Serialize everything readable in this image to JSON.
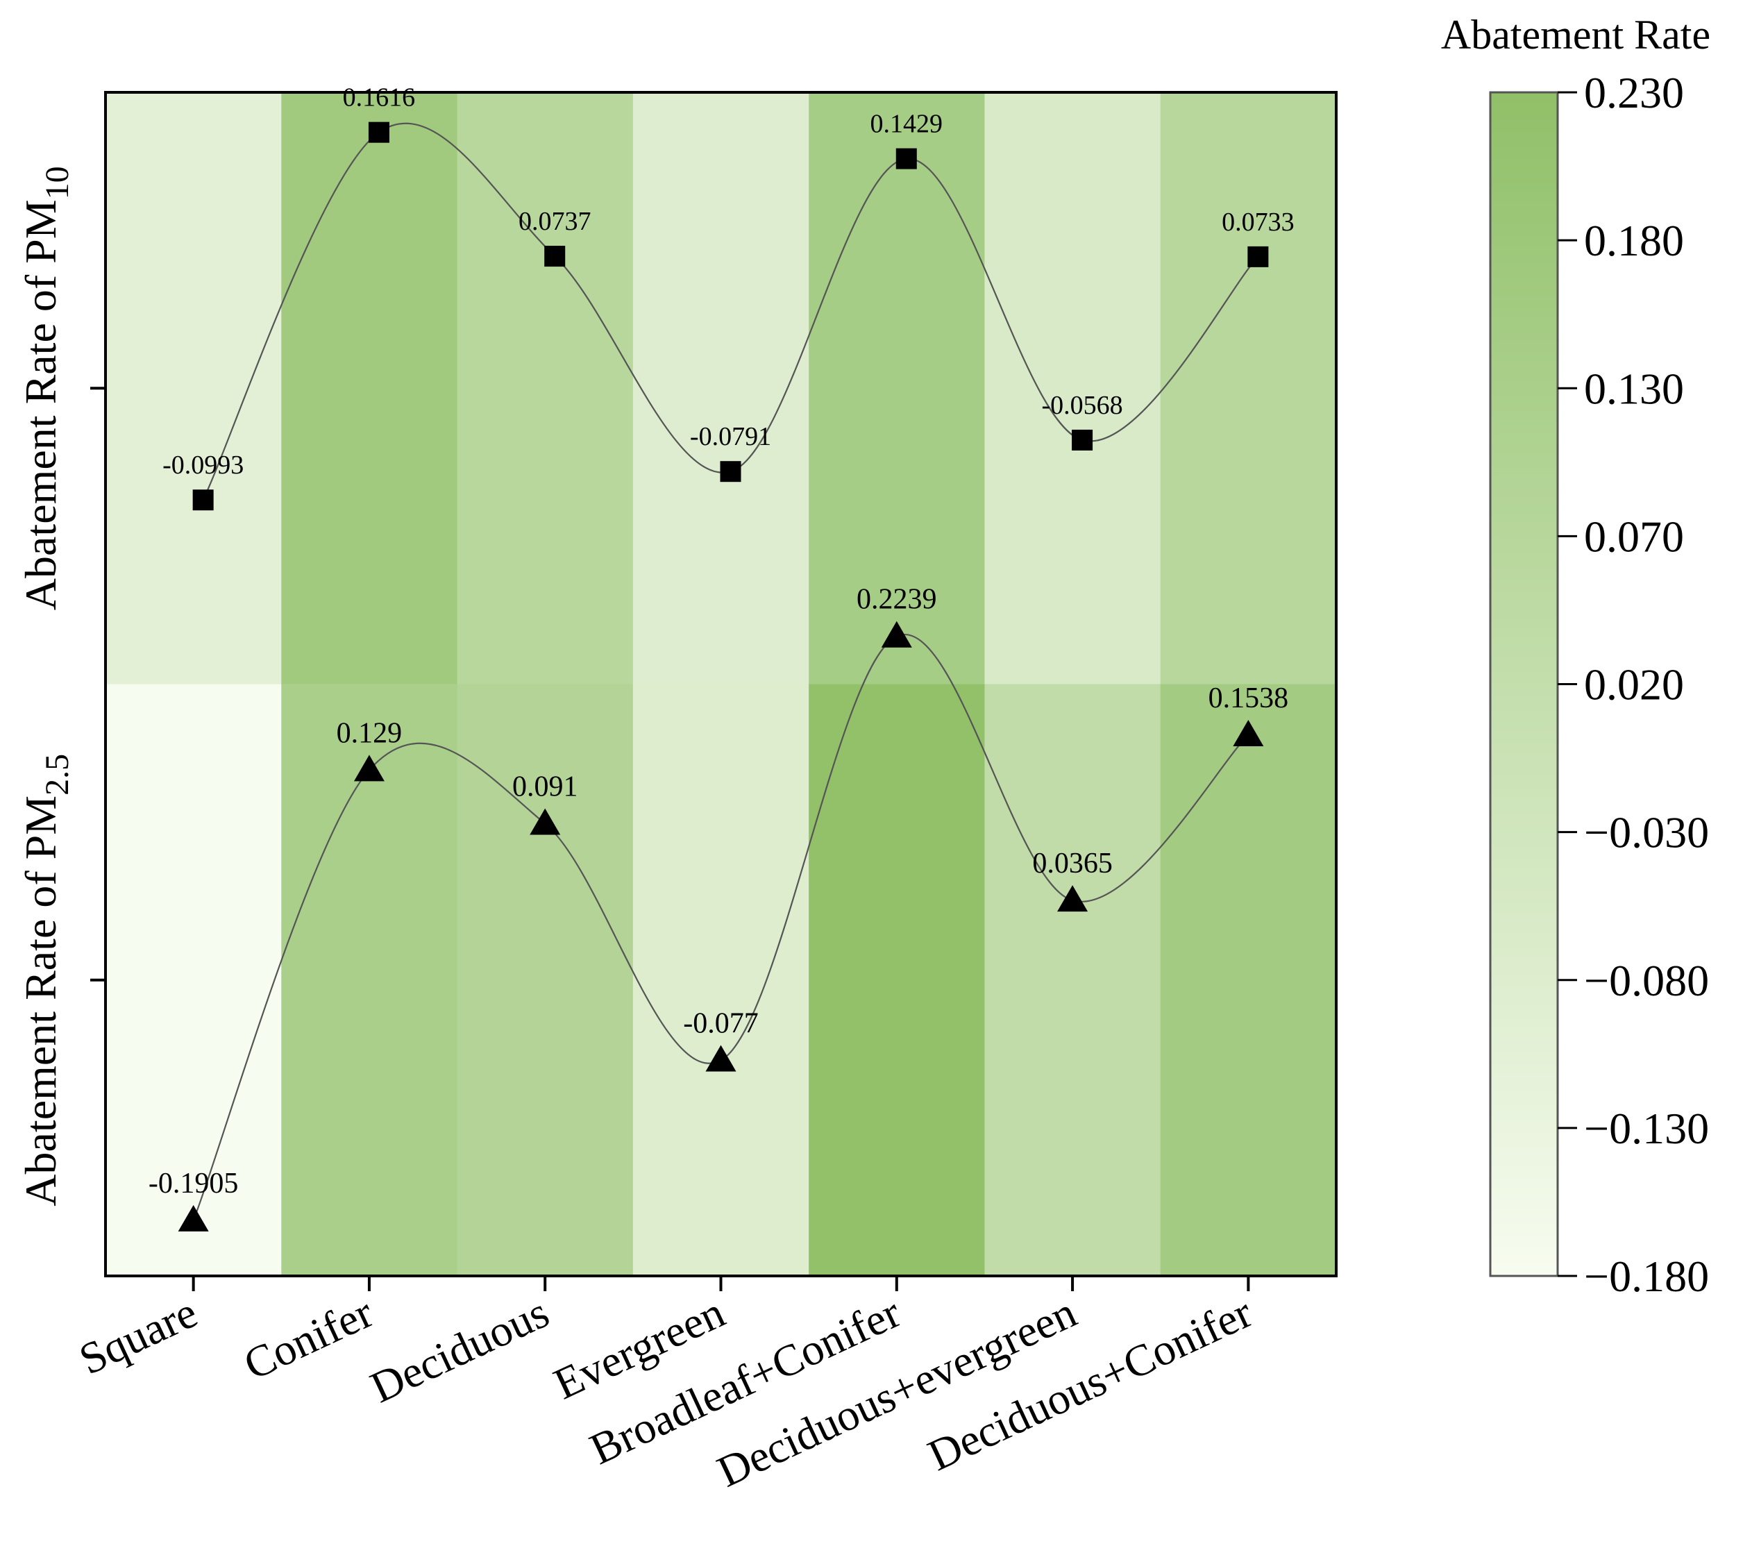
{
  "chart_data": {
    "type": "heatmap",
    "categories": [
      "Square",
      "Conifer",
      "Deciduous",
      "Evergreen",
      "Broadleaf+Conifer",
      "Deciduous+evergreen",
      "Deciduous+Conifer"
    ],
    "rows": [
      {
        "name": "PM10",
        "ylabel_main": "Abatement Rate of PM",
        "ylabel_sub": "10",
        "marker": "square",
        "values": [
          -0.0993,
          0.1616,
          0.0737,
          -0.0791,
          0.1429,
          -0.0568,
          0.0733
        ],
        "labels": [
          "-0.0993",
          "0.1616",
          "0.0737",
          "-0.0791",
          "0.1429",
          "-0.0568",
          "0.0733"
        ]
      },
      {
        "name": "PM2.5",
        "ylabel_main": "Abatement Rate of PM",
        "ylabel_sub": "2.5",
        "marker": "triangle",
        "values": [
          -0.1905,
          0.129,
          0.091,
          -0.077,
          0.2239,
          0.0365,
          0.1538
        ],
        "labels": [
          "-0.1905",
          "0.129",
          "0.091",
          "-0.077",
          "0.2239",
          "0.0365",
          "0.1538"
        ]
      }
    ],
    "colorbar": {
      "title": "Abatement Rate",
      "min": -0.18,
      "max": 0.23,
      "ticks": [
        0.23,
        0.18,
        0.13,
        0.07,
        0.02,
        -0.03,
        -0.08,
        -0.13,
        -0.18
      ],
      "tick_labels": [
        "0.230",
        "0.180",
        "0.130",
        "0.070",
        "0.020",
        "−0.030",
        "−0.080",
        "−0.130",
        "−0.180"
      ],
      "color_low": "#f7fcf0",
      "color_high": "#90c068"
    },
    "row_value_range": {
      "min": -0.23,
      "max": 0.19
    },
    "line_color": "#555555",
    "marker_color": "#000000"
  }
}
